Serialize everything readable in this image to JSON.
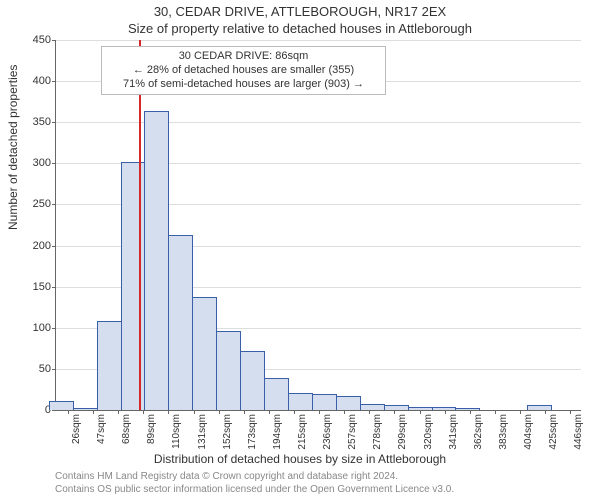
{
  "title_main": "30, CEDAR DRIVE, ATTLEBOROUGH, NR17 2EX",
  "title_sub": "Size of property relative to detached houses in Attleborough",
  "ylabel": "Number of detached properties",
  "xlabel": "Distribution of detached houses by size in Attleborough",
  "copyright_line1": "Contains HM Land Registry data © Crown copyright and database right 2024.",
  "copyright_line2": "Contains OS public sector information licensed under the Open Government Licence v3.0.",
  "chart": {
    "type": "histogram",
    "ylim": [
      0,
      450
    ],
    "ytick_step": 50,
    "bar_fill": "#d4deef",
    "bar_stroke": "#3b5ea8",
    "bar_stroke_width": 1,
    "grid_color": "#dddddd",
    "border_color": "#666666",
    "background_color": "#ffffff",
    "marker_color": "#d62728",
    "marker_x_value": 86,
    "x_range": [
      16,
      455
    ],
    "x_tick_start": 26,
    "x_tick_step": 21,
    "x_tick_unit": "sqm",
    "bars": [
      {
        "x": 20,
        "count": 10
      },
      {
        "x": 40,
        "count": 1
      },
      {
        "x": 60,
        "count": 107
      },
      {
        "x": 80,
        "count": 301
      },
      {
        "x": 100,
        "count": 362
      },
      {
        "x": 120,
        "count": 212
      },
      {
        "x": 140,
        "count": 136
      },
      {
        "x": 160,
        "count": 95
      },
      {
        "x": 180,
        "count": 70
      },
      {
        "x": 200,
        "count": 38
      },
      {
        "x": 220,
        "count": 20
      },
      {
        "x": 240,
        "count": 18
      },
      {
        "x": 260,
        "count": 16
      },
      {
        "x": 280,
        "count": 6
      },
      {
        "x": 300,
        "count": 5
      },
      {
        "x": 320,
        "count": 2
      },
      {
        "x": 340,
        "count": 2
      },
      {
        "x": 360,
        "count": 1
      },
      {
        "x": 380,
        "count": 0
      },
      {
        "x": 400,
        "count": 0
      },
      {
        "x": 420,
        "count": 5
      },
      {
        "x": 440,
        "count": 0
      }
    ],
    "annotation": {
      "line1": "30 CEDAR DRIVE: 86sqm",
      "line2": "← 28% of detached houses are smaller (355)",
      "line3": "71% of semi-detached houses are larger (903) →",
      "border_color": "#bbbbbb",
      "background": "#ffffff",
      "fontsize": 11
    }
  }
}
